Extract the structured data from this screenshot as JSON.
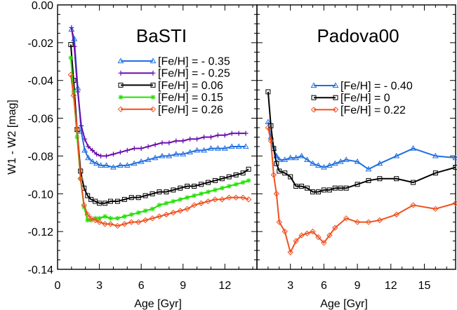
{
  "chart_data": [
    {
      "type": "line",
      "title": "BaSTI",
      "xlabel": "Age [Gyr]",
      "ylabel": "W1 - W2 [mag]",
      "xlim": [
        0,
        14.3
      ],
      "ylim": [
        -0.14,
        0.0
      ],
      "x_ticks": [
        0,
        3,
        6,
        9,
        12
      ],
      "x_tick_labels": [
        "0",
        "3",
        "6",
        "9",
        "12"
      ],
      "y_ticks": [
        0.0,
        -0.02,
        -0.04,
        -0.06,
        -0.08,
        -0.1,
        -0.12,
        -0.14
      ],
      "y_tick_labels": [
        "0.00",
        "-0.02",
        "-0.04",
        "-0.06",
        "-0.08",
        "-0.10",
        "-0.12",
        "-0.14"
      ],
      "legend_position": "top-right",
      "grid": false,
      "series": [
        {
          "name": "[Fe/H] = - 0.35",
          "color": "#1f6fe0",
          "marker": "triangle",
          "x": [
            1.0,
            1.2,
            1.45,
            1.7,
            1.95,
            2.2,
            2.5,
            2.8,
            3.1,
            3.5,
            4.0,
            4.5,
            5.0,
            5.5,
            6.0,
            6.5,
            7.0,
            7.5,
            8.0,
            8.5,
            9.0,
            9.5,
            10.0,
            10.5,
            11.0,
            11.5,
            12.0,
            12.5,
            13.0,
            13.5
          ],
          "y": [
            -0.013,
            -0.018,
            -0.044,
            -0.067,
            -0.077,
            -0.081,
            -0.083,
            -0.084,
            -0.085,
            -0.085,
            -0.086,
            -0.085,
            -0.085,
            -0.084,
            -0.083,
            -0.082,
            -0.081,
            -0.08,
            -0.08,
            -0.079,
            -0.079,
            -0.078,
            -0.077,
            -0.077,
            -0.076,
            -0.076,
            -0.076,
            -0.075,
            -0.075,
            -0.075
          ]
        },
        {
          "name": "[Fe/H] = - 0.25",
          "color": "#6a0dad",
          "marker": "plus",
          "x": [
            1.0,
            1.2,
            1.45,
            1.7,
            1.95,
            2.2,
            2.5,
            2.8,
            3.1,
            3.5,
            4.0,
            4.5,
            5.0,
            5.5,
            6.0,
            6.5,
            7.0,
            7.5,
            8.0,
            8.5,
            9.0,
            9.5,
            10.0,
            10.5,
            11.0,
            11.5,
            12.0,
            12.5,
            13.0,
            13.5
          ],
          "y": [
            -0.012,
            -0.022,
            -0.046,
            -0.064,
            -0.071,
            -0.075,
            -0.077,
            -0.079,
            -0.08,
            -0.08,
            -0.079,
            -0.078,
            -0.077,
            -0.076,
            -0.076,
            -0.075,
            -0.074,
            -0.073,
            -0.073,
            -0.072,
            -0.072,
            -0.071,
            -0.071,
            -0.07,
            -0.07,
            -0.069,
            -0.069,
            -0.068,
            -0.068,
            -0.068
          ]
        },
        {
          "name": "[Fe/H] = 0.06",
          "color": "#000000",
          "marker": "square",
          "x": [
            0.95,
            1.15,
            1.4,
            1.65,
            1.9,
            2.15,
            2.4,
            2.7,
            3.0,
            3.4,
            3.8,
            4.3,
            4.8,
            5.3,
            5.8,
            6.3,
            6.8,
            7.3,
            7.8,
            8.3,
            8.8,
            9.3,
            9.8,
            10.3,
            10.8,
            11.3,
            11.8,
            12.3,
            12.8,
            13.3,
            13.7
          ],
          "y": [
            -0.021,
            -0.04,
            -0.066,
            -0.088,
            -0.097,
            -0.101,
            -0.103,
            -0.104,
            -0.105,
            -0.105,
            -0.104,
            -0.104,
            -0.103,
            -0.102,
            -0.102,
            -0.101,
            -0.1,
            -0.099,
            -0.099,
            -0.098,
            -0.097,
            -0.096,
            -0.096,
            -0.095,
            -0.094,
            -0.093,
            -0.092,
            -0.091,
            -0.09,
            -0.089,
            -0.087
          ]
        },
        {
          "name": "[Fe/H] = 0.15",
          "color": "#22e000",
          "marker": "star",
          "x": [
            0.95,
            1.15,
            1.4,
            1.65,
            1.9,
            2.15,
            2.4,
            2.7,
            3.0,
            3.4,
            3.8,
            4.3,
            4.8,
            5.3,
            5.8,
            6.3,
            6.8,
            7.3,
            7.8,
            8.3,
            8.8,
            9.3,
            9.8,
            10.3,
            10.8,
            11.3,
            11.8,
            12.3,
            12.8,
            13.3,
            13.7
          ],
          "y": [
            -0.028,
            -0.046,
            -0.07,
            -0.092,
            -0.107,
            -0.114,
            -0.114,
            -0.113,
            -0.113,
            -0.112,
            -0.113,
            -0.113,
            -0.112,
            -0.111,
            -0.11,
            -0.109,
            -0.108,
            -0.106,
            -0.105,
            -0.104,
            -0.103,
            -0.102,
            -0.101,
            -0.1,
            -0.099,
            -0.098,
            -0.097,
            -0.096,
            -0.095,
            -0.094,
            -0.093
          ]
        },
        {
          "name": "[Fe/H] = 0.26",
          "color": "#f0501e",
          "marker": "diamond",
          "x": [
            0.95,
            1.15,
            1.4,
            1.65,
            1.9,
            2.15,
            2.4,
            2.7,
            3.0,
            3.4,
            3.8,
            4.3,
            4.8,
            5.3,
            5.8,
            6.3,
            6.8,
            7.3,
            7.8,
            8.3,
            8.8,
            9.3,
            9.8,
            10.3,
            10.8,
            11.3,
            11.8,
            12.3,
            12.8,
            13.3,
            13.7
          ],
          "y": [
            -0.037,
            -0.048,
            -0.066,
            -0.092,
            -0.106,
            -0.111,
            -0.113,
            -0.114,
            -0.115,
            -0.116,
            -0.116,
            -0.117,
            -0.116,
            -0.115,
            -0.115,
            -0.114,
            -0.113,
            -0.112,
            -0.111,
            -0.11,
            -0.109,
            -0.108,
            -0.106,
            -0.105,
            -0.104,
            -0.103,
            -0.103,
            -0.102,
            -0.102,
            -0.102,
            -0.103
          ]
        }
      ]
    },
    {
      "type": "line",
      "title": "Padova00",
      "xlabel": "Age [Gyr]",
      "ylabel": "",
      "xlim": [
        0,
        17.8
      ],
      "ylim": [
        -0.14,
        0.0
      ],
      "x_ticks": [
        3,
        6,
        9,
        12,
        15
      ],
      "x_tick_labels": [
        "3",
        "6",
        "9",
        "12",
        "15"
      ],
      "legend_position": "top-right",
      "grid": false,
      "series": [
        {
          "name": "[Fe/H] = - 0.40",
          "color": "#1f6fe0",
          "marker": "triangle",
          "x": [
            1.0,
            1.25,
            1.5,
            1.75,
            2.0,
            2.5,
            3.0,
            3.5,
            4.0,
            4.5,
            5.0,
            5.5,
            6.0,
            6.5,
            7.0,
            7.5,
            8.0,
            9.0,
            10.0,
            11.0,
            12.5,
            14.0,
            16.0,
            17.8
          ],
          "y": [
            -0.062,
            -0.07,
            -0.076,
            -0.08,
            -0.082,
            -0.082,
            -0.081,
            -0.081,
            -0.08,
            -0.082,
            -0.084,
            -0.085,
            -0.086,
            -0.085,
            -0.084,
            -0.083,
            -0.082,
            -0.083,
            -0.087,
            -0.084,
            -0.08,
            -0.076,
            -0.08,
            -0.081
          ]
        },
        {
          "name": "[Fe/H] = 0",
          "color": "#000000",
          "marker": "square",
          "x": [
            1.0,
            1.25,
            1.5,
            1.75,
            2.0,
            2.5,
            3.0,
            3.5,
            4.0,
            4.5,
            5.0,
            5.5,
            6.0,
            6.5,
            7.0,
            7.5,
            8.0,
            9.0,
            10.0,
            11.0,
            12.5,
            14.0,
            16.0,
            17.8
          ],
          "y": [
            -0.046,
            -0.064,
            -0.076,
            -0.084,
            -0.088,
            -0.089,
            -0.091,
            -0.096,
            -0.096,
            -0.097,
            -0.099,
            -0.099,
            -0.098,
            -0.098,
            -0.097,
            -0.097,
            -0.097,
            -0.095,
            -0.093,
            -0.092,
            -0.092,
            -0.094,
            -0.089,
            -0.086
          ]
        },
        {
          "name": "[Fe/H] = 0.22",
          "color": "#f0501e",
          "marker": "diamond",
          "x": [
            1.0,
            1.25,
            1.5,
            1.75,
            2.0,
            2.5,
            3.0,
            3.5,
            4.0,
            4.5,
            5.0,
            5.5,
            6.0,
            6.5,
            7.0,
            8.0,
            9.0,
            10.0,
            11.0,
            12.5,
            14.0,
            16.0,
            17.8
          ],
          "y": [
            -0.065,
            -0.072,
            -0.09,
            -0.1,
            -0.115,
            -0.12,
            -0.131,
            -0.125,
            -0.122,
            -0.121,
            -0.12,
            -0.123,
            -0.126,
            -0.122,
            -0.118,
            -0.113,
            -0.115,
            -0.115,
            -0.114,
            -0.111,
            -0.106,
            -0.108,
            -0.105
          ]
        }
      ]
    }
  ]
}
